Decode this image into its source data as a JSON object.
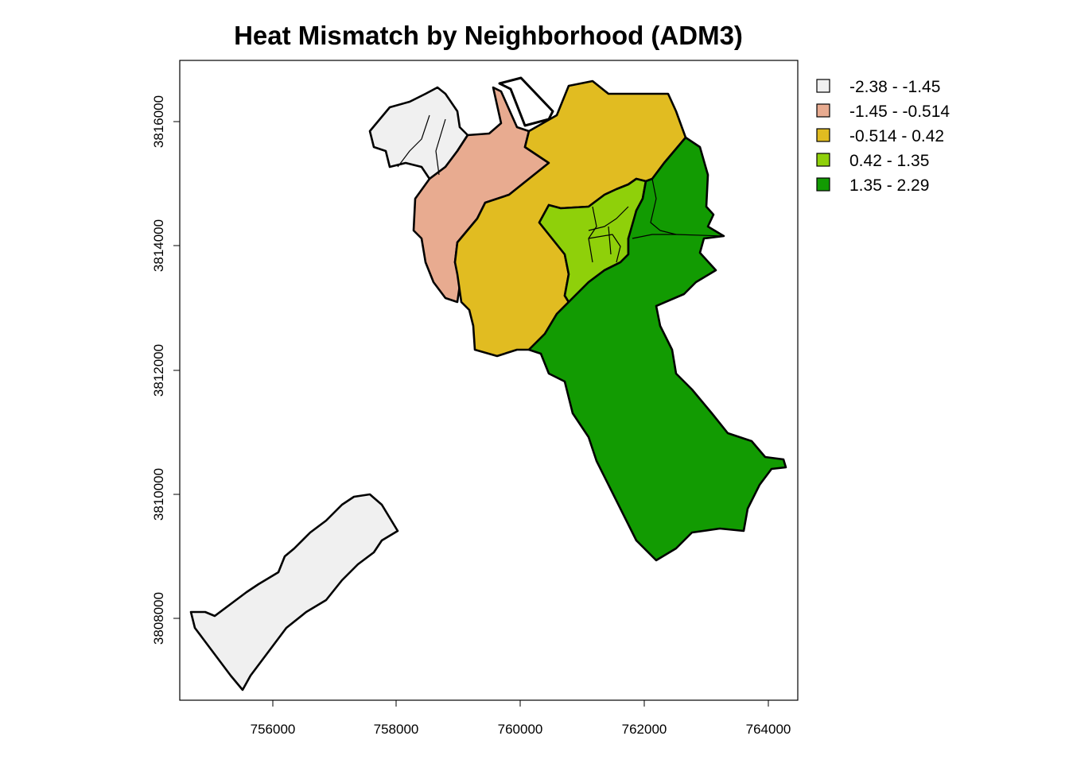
{
  "title": "Heat Mismatch by Neighborhood (ADM3)",
  "legend": {
    "placement": "top-right",
    "classes": [
      {
        "label": "-2.38 - -1.45",
        "color": "#F0F0F0"
      },
      {
        "label": "-1.45 - -0.514",
        "color": "#E8AB90"
      },
      {
        "label": "-0.514 - 0.42",
        "color": "#E1BC21"
      },
      {
        "label": "0.42 - 1.35",
        "color": "#8FD00A"
      },
      {
        "label": "1.35 - 2.29",
        "color": "#129B02"
      }
    ]
  },
  "x_axis": {
    "ticks": [
      "756000",
      "758000",
      "760000",
      "762000",
      "764000"
    ]
  },
  "y_axis": {
    "ticks": [
      "3808000",
      "3810000",
      "3812000",
      "3814000",
      "3816000"
    ]
  }
}
